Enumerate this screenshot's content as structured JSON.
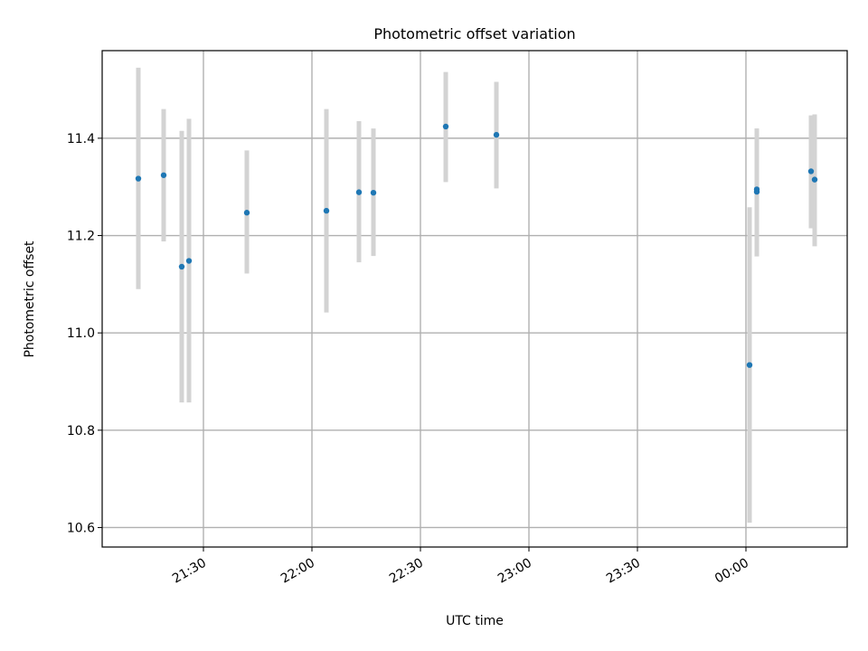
{
  "chart_data": {
    "type": "scatter",
    "title": "Photometric offset variation",
    "xlabel": "UTC time",
    "ylabel": "Photometric offset",
    "grid": true,
    "x_ticks": [
      "21:30",
      "22:00",
      "22:30",
      "23:00",
      "23:30",
      "00:00"
    ],
    "y_ticks": [
      "10.6",
      "10.8",
      "11.0",
      "11.2",
      "11.4"
    ],
    "ylim": [
      10.56,
      11.58
    ],
    "xlim": [
      "21:02",
      "00:28"
    ],
    "colors": {
      "point": "#1f77b4",
      "errorbar": "#d3d3d3"
    },
    "points": [
      {
        "x": "21:12",
        "y": 11.317,
        "yerr_low": 11.09,
        "yerr_high": 11.545
      },
      {
        "x": "21:19",
        "y": 11.324,
        "yerr_low": 11.188,
        "yerr_high": 11.46
      },
      {
        "x": "21:24",
        "y": 11.136,
        "yerr_low": 10.857,
        "yerr_high": 11.415
      },
      {
        "x": "21:26",
        "y": 11.148,
        "yerr_low": 10.857,
        "yerr_high": 11.44
      },
      {
        "x": "21:42",
        "y": 11.247,
        "yerr_low": 11.122,
        "yerr_high": 11.375
      },
      {
        "x": "22:04",
        "y": 11.251,
        "yerr_low": 11.042,
        "yerr_high": 11.46
      },
      {
        "x": "22:13",
        "y": 11.289,
        "yerr_low": 11.145,
        "yerr_high": 11.435
      },
      {
        "x": "22:17",
        "y": 11.288,
        "yerr_low": 11.158,
        "yerr_high": 11.42
      },
      {
        "x": "22:37",
        "y": 11.424,
        "yerr_low": 11.31,
        "yerr_high": 11.536
      },
      {
        "x": "22:51",
        "y": 11.407,
        "yerr_low": 11.297,
        "yerr_high": 11.516
      },
      {
        "x": "00:01",
        "y": 10.934,
        "yerr_low": 10.61,
        "yerr_high": 11.258
      },
      {
        "x": "00:03",
        "y": 11.29,
        "yerr_low": 11.157,
        "yerr_high": 11.42
      },
      {
        "x": "00:03",
        "y": 11.295,
        "yerr_low": 11.168,
        "yerr_high": 11.42
      },
      {
        "x": "00:18",
        "y": 11.332,
        "yerr_low": 11.215,
        "yerr_high": 11.447
      },
      {
        "x": "00:19",
        "y": 11.315,
        "yerr_low": 11.178,
        "yerr_high": 11.449
      }
    ]
  }
}
